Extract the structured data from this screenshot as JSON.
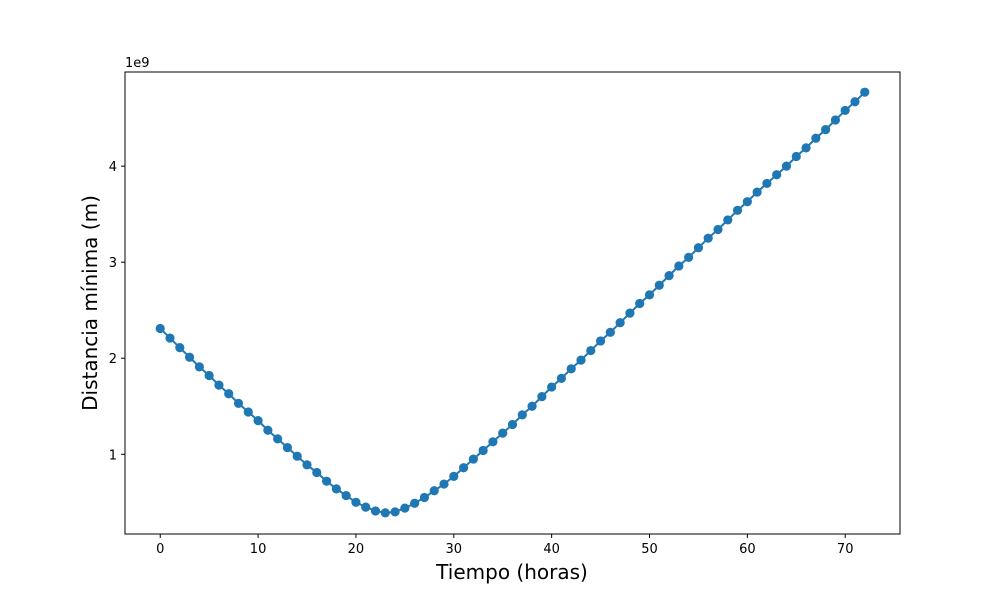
{
  "chart_data": {
    "type": "line",
    "title": "",
    "xlabel": "Tiempo (horas)",
    "ylabel": "Distancia mínima (m)",
    "y_offset_label": "1e9",
    "y_scale_factor": 1000000000.0,
    "xlim": [
      -3.6,
      75.6
    ],
    "ylim": [
      0.17,
      4.98
    ],
    "xticks": [
      0,
      10,
      20,
      30,
      40,
      50,
      60,
      70
    ],
    "yticks": [
      1,
      2,
      3,
      4
    ],
    "grid": false,
    "legend": false,
    "marker": "circle",
    "color": "#1f77b4",
    "x": [
      0,
      1,
      2,
      3,
      4,
      5,
      6,
      7,
      8,
      9,
      10,
      11,
      12,
      13,
      14,
      15,
      16,
      17,
      18,
      19,
      20,
      21,
      22,
      23,
      24,
      25,
      26,
      27,
      28,
      29,
      30,
      31,
      32,
      33,
      34,
      35,
      36,
      37,
      38,
      39,
      40,
      41,
      42,
      43,
      44,
      45,
      46,
      47,
      48,
      49,
      50,
      51,
      52,
      53,
      54,
      55,
      56,
      57,
      58,
      59,
      60,
      61,
      62,
      63,
      64,
      65,
      66,
      67,
      68,
      69,
      70,
      71,
      72
    ],
    "series": [
      {
        "values": [
          2.31,
          2.21,
          2.11,
          2.01,
          1.91,
          1.82,
          1.72,
          1.63,
          1.53,
          1.44,
          1.35,
          1.25,
          1.16,
          1.07,
          0.98,
          0.89,
          0.81,
          0.72,
          0.64,
          0.57,
          0.5,
          0.45,
          0.41,
          0.39,
          0.4,
          0.44,
          0.49,
          0.55,
          0.62,
          0.69,
          0.77,
          0.86,
          0.95,
          1.04,
          1.13,
          1.22,
          1.31,
          1.41,
          1.5,
          1.6,
          1.7,
          1.79,
          1.89,
          1.98,
          2.08,
          2.18,
          2.27,
          2.37,
          2.47,
          2.57,
          2.66,
          2.76,
          2.86,
          2.96,
          3.05,
          3.15,
          3.25,
          3.34,
          3.44,
          3.54,
          3.63,
          3.73,
          3.82,
          3.91,
          4.0,
          4.1,
          4.19,
          4.29,
          4.38,
          4.48,
          4.58,
          4.67,
          4.77
        ]
      }
    ]
  }
}
